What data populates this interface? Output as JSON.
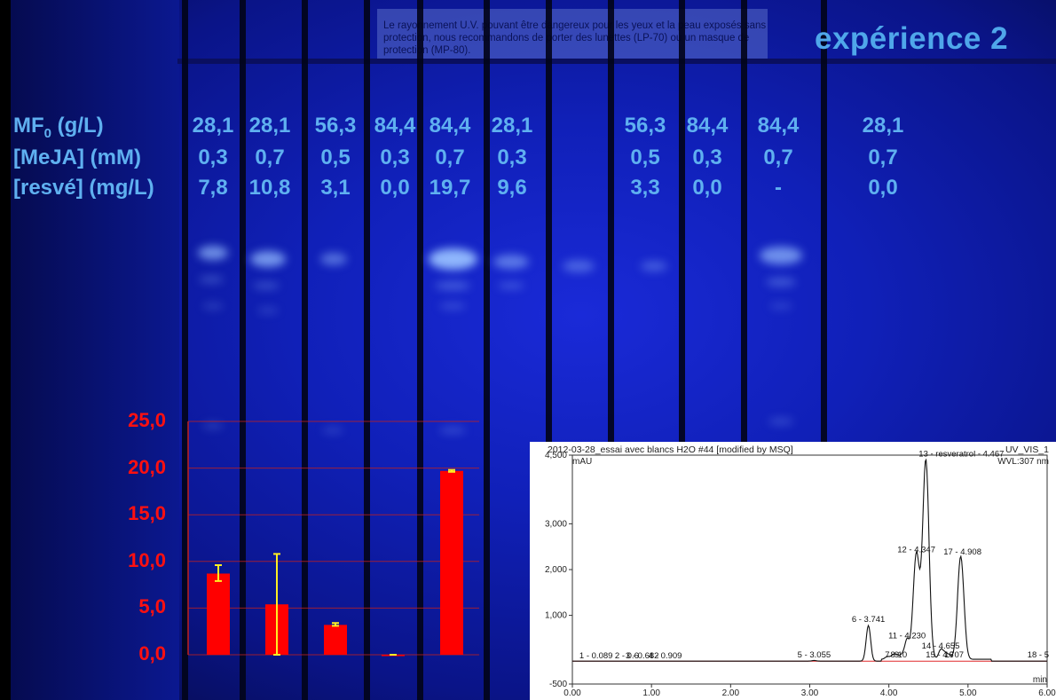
{
  "title": "expérience 2",
  "notice_text": "Le rayonnement U.V. pouvant être dangereux pour les yeux et la peau exposés sans protection, nous recommandons de porter des lunettes (LP-70) ou un masque de protection (MP-80).",
  "rows": [
    {
      "label": "MF₀ (g/L)",
      "values": [
        "28,1",
        "28,1",
        "56,3",
        "84,4",
        "84,4",
        "28,1",
        "",
        "56,3",
        "84,4",
        "84,4",
        "28,1"
      ]
    },
    {
      "label": "[MeJA] (mM)",
      "values": [
        "0,3",
        "0,7",
        "0,5",
        "0,3",
        "0,7",
        "0,3",
        "",
        "0,5",
        "0,3",
        "0,7",
        "0,7"
      ]
    },
    {
      "label": "[resvé] (mg/L)",
      "values": [
        "7,8",
        "10,8",
        "3,1",
        "0,0",
        "19,7",
        "9,6",
        "",
        "3,3",
        "0,0",
        "-",
        "0,0"
      ]
    }
  ],
  "chart_data": [
    {
      "type": "bar",
      "title": "",
      "xlabel": "",
      "ylabel": "",
      "ylim": [
        0,
        25
      ],
      "yticks": [
        "0,0",
        "5,0",
        "10,0",
        "15,0",
        "20,0",
        "25,0"
      ],
      "grid": true,
      "color": "#ff0000",
      "values": [
        8.7,
        5.4,
        3.2,
        0.0,
        19.7
      ],
      "error": [
        {
          "low": 7.9,
          "high": 9.6
        },
        {
          "low": 0.0,
          "high": 10.8
        },
        {
          "low": 3.1,
          "high": 3.4
        },
        {
          "low": 0.0,
          "high": 0.0
        },
        {
          "low": 19.6,
          "high": 19.8
        }
      ]
    },
    {
      "type": "line",
      "title": "2012-03-28_essai avec blancs H2O #44 [modified by MSQ]",
      "channel": "UV_VIS_1",
      "wavelength": "WVL:307 nm",
      "ylabel": "mAU",
      "xlabel": "min",
      "xlim": [
        0,
        6
      ],
      "ylim": [
        -500,
        4500
      ],
      "xticks": [
        "0.00",
        "1.00",
        "2.00",
        "3.00",
        "4.00",
        "5.00",
        "6.00"
      ],
      "yticks": [
        "-500",
        "1,000",
        "2,000",
        "3,000",
        "4,500"
      ],
      "peaks": [
        {
          "label": "1 - 0.089",
          "x": 0.089,
          "h": 0
        },
        {
          "label": "2 - 0.6",
          "x": 0.6,
          "h": 0
        },
        {
          "label": "3 - 0.682",
          "x": 0.682,
          "h": 0
        },
        {
          "label": "4 - 0.909",
          "x": 0.909,
          "h": 0
        },
        {
          "label": "5 - 3.055",
          "x": 3.055,
          "h": 15
        },
        {
          "label": "6 - 3.741",
          "x": 3.741,
          "h": 780
        },
        {
          "label": "7",
          "x": 3.98,
          "h": 60
        },
        {
          "label": "8",
          "x": 4.05,
          "h": 80
        },
        {
          "label": "9",
          "x": 4.1,
          "h": 90
        },
        {
          "label": "10",
          "x": 4.17,
          "h": 100
        },
        {
          "label": "11 - 4.230",
          "x": 4.23,
          "h": 420
        },
        {
          "label": "12 - 4.347",
          "x": 4.347,
          "h": 2300
        },
        {
          "label": "13 - resveratrol - 4.467",
          "x": 4.467,
          "h": 4350
        },
        {
          "label": "14 - 4.655",
          "x": 4.655,
          "h": 200
        },
        {
          "label": "15 - 4.707",
          "x": 4.707,
          "h": 120
        },
        {
          "label": "16",
          "x": 4.76,
          "h": 90
        },
        {
          "label": "17 - 4.908",
          "x": 4.908,
          "h": 2250
        },
        {
          "label": "18 - 5",
          "x": 5.75,
          "h": 0
        }
      ]
    }
  ]
}
